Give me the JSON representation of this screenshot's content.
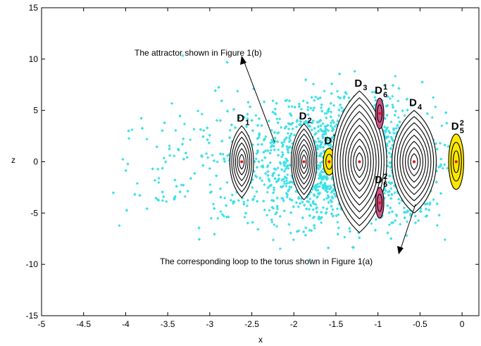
{
  "chart_data": {
    "type": "scatter",
    "title": "",
    "xlabel": "x",
    "ylabel": "z",
    "xlim": [
      -5,
      0.2
    ],
    "ylim": [
      -15,
      15
    ],
    "xticks": [
      -5,
      -4.5,
      -4,
      -3.5,
      -3,
      -2.5,
      -2,
      -1.5,
      -1,
      -0.5,
      0
    ],
    "yticks": [
      -15,
      -10,
      -5,
      0,
      5,
      10,
      15
    ],
    "xtick_labels": [
      "-5",
      "-4.5",
      "-4",
      "-3.5",
      "-3",
      "-2.5",
      "-2",
      "-1.5",
      "-1",
      "-0.5",
      "0"
    ],
    "ytick_labels": [
      "-15",
      "-10",
      "-5",
      "0",
      "5",
      "10",
      "15"
    ],
    "grid": false,
    "scatter_color": "#3fe0e8",
    "scatter_cloud": {
      "x_range": [
        -4.2,
        -0.1
      ],
      "z_range": [
        -11.5,
        11.5
      ],
      "core_x_range": [
        -3.0,
        -0.2
      ],
      "core_z_range": [
        -7,
        7
      ]
    },
    "regions": [
      {
        "id": "D1",
        "base": "D",
        "sub": "1",
        "sup": "",
        "cx": -2.62,
        "cz": 0,
        "rx": 0.14,
        "rz": 3.5,
        "levels": 6,
        "fill": "#ffffff",
        "kind": "lens"
      },
      {
        "id": "D2",
        "base": "D",
        "sub": "2",
        "sup": "",
        "cx": -1.88,
        "cz": 0,
        "rx": 0.15,
        "rz": 3.7,
        "levels": 7,
        "fill": "#ffffff",
        "kind": "lens"
      },
      {
        "id": "D5_1",
        "base": "D",
        "sub": "5",
        "sup": "1",
        "cx": -1.58,
        "cz": 0,
        "rx": 0.07,
        "rz": 1.3,
        "levels": 2,
        "fill": "#ffe800",
        "kind": "ellipse"
      },
      {
        "id": "D3",
        "base": "D",
        "sub": "3",
        "sup": "",
        "cx": -1.22,
        "cz": 0,
        "rx": 0.32,
        "rz": 6.9,
        "levels": 10,
        "fill": "#ffffff",
        "kind": "lens"
      },
      {
        "id": "D6_1",
        "base": "D",
        "sub": "6",
        "sup": "1",
        "cx": -0.98,
        "cz": 4.7,
        "rx": 0.05,
        "rz": 1.5,
        "levels": 2,
        "fill": "#cc5588",
        "kind": "ellipse"
      },
      {
        "id": "D6_2",
        "base": "D",
        "sub": "6",
        "sup": "2",
        "cx": -0.98,
        "cz": -4.0,
        "rx": 0.05,
        "rz": 1.5,
        "levels": 2,
        "fill": "#cc5588",
        "kind": "ellipse"
      },
      {
        "id": "D4",
        "base": "D",
        "sub": "4",
        "sup": "",
        "cx": -0.57,
        "cz": 0,
        "rx": 0.26,
        "rz": 5.0,
        "levels": 8,
        "fill": "#ffffff",
        "kind": "lens"
      },
      {
        "id": "D5_2",
        "base": "D",
        "sub": "5",
        "sup": "2",
        "cx": -0.07,
        "cz": 0,
        "rx": 0.09,
        "rz": 2.7,
        "levels": 3,
        "fill": "#ffe800",
        "kind": "ellipse"
      }
    ],
    "annotations": [
      {
        "id": "attractor",
        "text": "The attractor shown in Figure 1(b)"
      },
      {
        "id": "loop",
        "text": "The corresponding loop to the torus shown in Figure 1(a)"
      }
    ]
  }
}
